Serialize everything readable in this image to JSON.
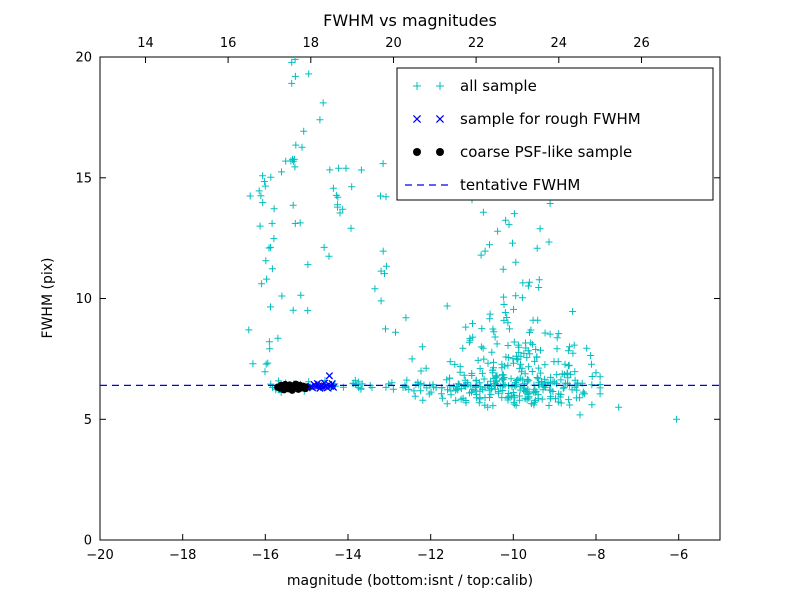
{
  "chart_data": {
    "type": "scatter",
    "title": "FWHM vs magnitudes",
    "xlabel": "magnitude (bottom:isnt / top:calib)",
    "ylabel": "FWHM (pix)",
    "x_range": [
      -20,
      -5
    ],
    "y_range": [
      0,
      20
    ],
    "top_x_range": [
      12.9,
      27.9
    ],
    "x_ticks": [
      -20,
      -18,
      -16,
      -14,
      -12,
      -10,
      -8,
      -6
    ],
    "y_ticks": [
      0,
      5,
      10,
      15,
      20
    ],
    "top_x_ticks": [
      14,
      16,
      18,
      20,
      22,
      24,
      26
    ],
    "tentative_fwhm": 6.4,
    "grid": false,
    "legend_position": "upper center-right",
    "colors": {
      "all_sample": "#00bfbf",
      "rough_sample": "#0000ff",
      "psf_sample": "#000000",
      "tentative_line": "#0000ff",
      "axes": "#000000",
      "background": "#ffffff"
    },
    "legend": [
      {
        "label": "all sample",
        "marker": "plus",
        "color": "#00bfbf"
      },
      {
        "label": "sample for rough FWHM",
        "marker": "x",
        "color": "#0000ff"
      },
      {
        "label": "coarse PSF-like sample",
        "marker": "dot",
        "color": "#000000"
      },
      {
        "label": "tentative FWHM",
        "marker": "dash",
        "color": "#0000ff"
      }
    ],
    "seed": 42,
    "all_sample_clusters": [
      {
        "name": "fwhm-band",
        "n": 100,
        "x": {
          "u": [
            -15.9,
            -8.3
          ]
        },
        "y": {
          "n": [
            6.38,
            0.12
          ],
          "clip": [
            6.0,
            6.8
          ]
        }
      },
      {
        "name": "band-right-dense",
        "n": 60,
        "x": {
          "u": [
            -12.6,
            -8.4
          ]
        },
        "y": {
          "n": [
            6.3,
            0.35
          ],
          "clip": [
            5.2,
            7.4
          ]
        }
      },
      {
        "name": "left-column-a",
        "n": 26,
        "x": {
          "n": [
            -15.9,
            0.18
          ],
          "clip": [
            -16.5,
            -15.5
          ]
        },
        "y": {
          "u": [
            6.9,
            15.3
          ]
        }
      },
      {
        "name": "left-column-b",
        "n": 20,
        "x": {
          "n": [
            -15.25,
            0.15
          ],
          "clip": [
            -15.6,
            -14.9
          ]
        },
        "y": {
          "u": [
            9.5,
            20.0
          ]
        }
      },
      {
        "name": "mid-sparse",
        "n": 14,
        "x": {
          "u": [
            -14.85,
            -13.05
          ]
        },
        "y": {
          "u": [
            8.5,
            19.8
          ]
        }
      },
      {
        "name": "mid-clump",
        "n": 9,
        "x": {
          "n": [
            -14.15,
            0.12
          ],
          "clip": [
            -14.45,
            -13.9
          ]
        },
        "y": {
          "n": [
            14.8,
            0.95
          ],
          "clip": [
            13.0,
            16.5
          ]
        }
      },
      {
        "name": "right-core",
        "n": 165,
        "x": {
          "n": [
            -9.9,
            0.8
          ],
          "clip": [
            -11.6,
            -8.0
          ]
        },
        "y": {
          "hn": [
            5.55,
            2.3
          ],
          "max": 14.4
        }
      },
      {
        "name": "right-low",
        "n": 70,
        "x": {
          "n": [
            -9.8,
            0.95
          ],
          "clip": [
            -11.7,
            -7.9
          ]
        },
        "y": {
          "n": [
            6.35,
            0.55
          ],
          "clip": [
            5.0,
            7.9
          ]
        }
      },
      {
        "name": "right-top",
        "n": 16,
        "x": {
          "n": [
            -9.9,
            0.55
          ],
          "clip": [
            -11.0,
            -8.8
          ]
        },
        "y": {
          "u": [
            10.5,
            14.3
          ]
        }
      }
    ],
    "all_sample_extra": [
      [
        -7.45,
        5.5
      ],
      [
        -6.05,
        5.0
      ],
      [
        -13.2,
        9.9
      ],
      [
        -13.35,
        10.4
      ],
      [
        -16.4,
        8.7
      ],
      [
        -16.3,
        7.3
      ],
      [
        -8.1,
        5.6
      ],
      [
        -7.9,
        6.3
      ],
      [
        -12.2,
        8.0
      ],
      [
        -12.45,
        7.5
      ],
      [
        -12.85,
        8.6
      ],
      [
        -12.6,
        9.2
      ],
      [
        -15.28,
        19.9
      ],
      [
        -14.95,
        19.3
      ],
      [
        -14.68,
        17.4
      ],
      [
        -14.6,
        18.1
      ]
    ],
    "rough_fwhm_points": [
      [
        -14.9,
        6.36
      ],
      [
        -14.86,
        6.3
      ],
      [
        -14.82,
        6.44
      ],
      [
        -14.78,
        6.35
      ],
      [
        -14.74,
        6.48
      ],
      [
        -14.71,
        6.38
      ],
      [
        -14.68,
        6.28
      ],
      [
        -14.64,
        6.42
      ],
      [
        -14.6,
        6.33
      ],
      [
        -14.57,
        6.5
      ],
      [
        -14.54,
        6.37
      ],
      [
        -14.5,
        6.3
      ],
      [
        -14.47,
        6.44
      ],
      [
        -14.45,
        6.8
      ],
      [
        -14.42,
        6.36
      ],
      [
        -14.38,
        6.47
      ],
      [
        -14.35,
        6.32
      ]
    ],
    "psf_points": [
      [
        -15.7,
        6.33
      ],
      [
        -15.65,
        6.28
      ],
      [
        -15.62,
        6.4
      ],
      [
        -15.58,
        6.35
      ],
      [
        -15.55,
        6.22
      ],
      [
        -15.52,
        6.44
      ],
      [
        -15.5,
        6.3
      ],
      [
        -15.47,
        6.38
      ],
      [
        -15.44,
        6.26
      ],
      [
        -15.41,
        6.42
      ],
      [
        -15.38,
        6.33
      ],
      [
        -15.35,
        6.2
      ],
      [
        -15.32,
        6.39
      ],
      [
        -15.29,
        6.29
      ],
      [
        -15.26,
        6.45
      ],
      [
        -15.23,
        6.35
      ],
      [
        -15.2,
        6.24
      ],
      [
        -15.16,
        6.4
      ],
      [
        -15.12,
        6.31
      ],
      [
        -15.08,
        6.37
      ],
      [
        -15.03,
        6.27
      ],
      [
        -14.98,
        6.34
      ]
    ]
  }
}
